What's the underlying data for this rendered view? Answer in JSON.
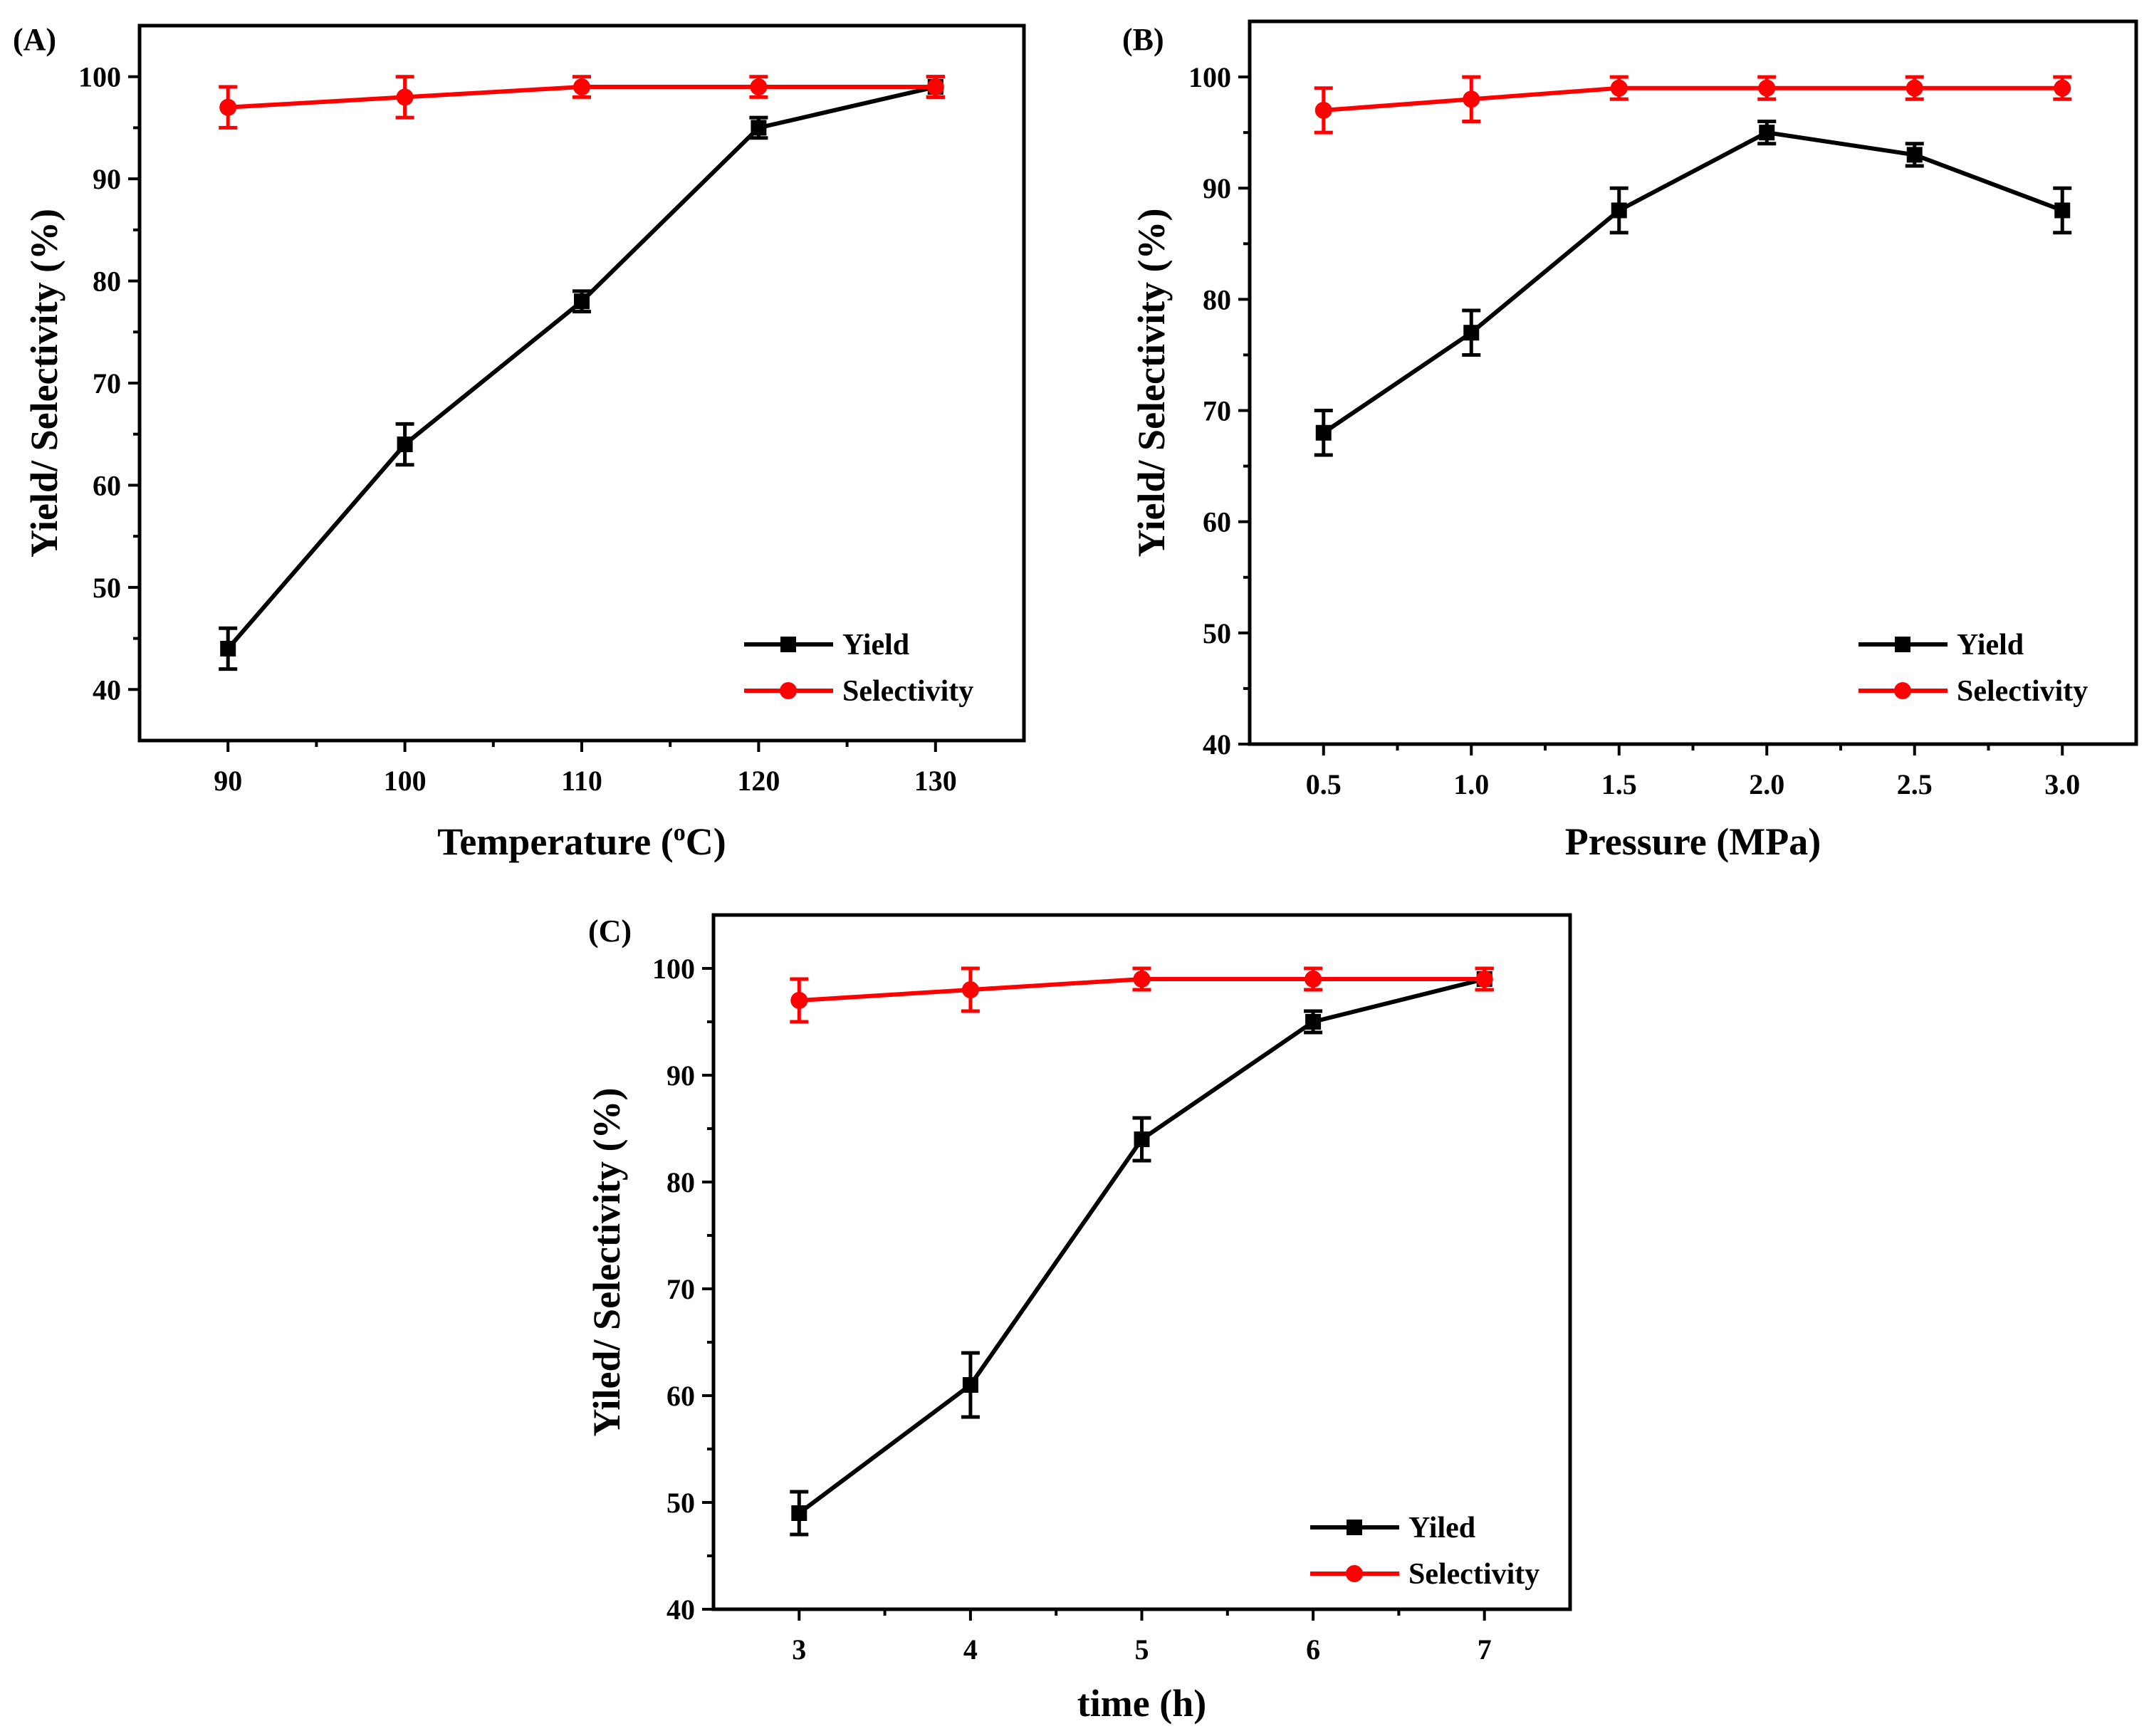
{
  "chart_data": [
    {
      "panel": "(A)",
      "type": "line",
      "xlabel": "Temperature (",
      "xlabel_sup": "o",
      "xlabel_suffix": "C)",
      "ylabel": "Yield/ Selectivity (%)",
      "x": [
        90,
        100,
        110,
        120,
        130
      ],
      "xticks": [
        "90",
        "100",
        "110",
        "120",
        "130"
      ],
      "xlim": [
        85,
        135
      ],
      "ylim": [
        35,
        105
      ],
      "yticks": [
        40,
        50,
        60,
        70,
        80,
        90,
        100
      ],
      "series": [
        {
          "name": "Yield",
          "color": "#000000",
          "marker": "square",
          "values": [
            44,
            64,
            78,
            95,
            99
          ],
          "errors": [
            2,
            2,
            1,
            1,
            1
          ]
        },
        {
          "name": "Selectivity",
          "color": "#ff0000",
          "marker": "circle",
          "values": [
            97,
            98,
            99,
            99,
            99
          ],
          "errors": [
            2,
            2,
            1,
            1,
            1
          ]
        }
      ],
      "legend": "bottom-right"
    },
    {
      "panel": "(B)",
      "type": "line",
      "xlabel": "Pressure (MPa)",
      "ylabel": "Yield/ Selectivity (%)",
      "x": [
        0.5,
        1.0,
        1.5,
        2.0,
        2.5,
        3.0
      ],
      "xticks": [
        "0.5",
        "1.0",
        "1.5",
        "2.0",
        "2.5",
        "3.0"
      ],
      "xlim": [
        0.25,
        3.25
      ],
      "ylim": [
        40,
        105
      ],
      "yticks": [
        40,
        50,
        60,
        70,
        80,
        90,
        100
      ],
      "series": [
        {
          "name": "Yield",
          "color": "#000000",
          "marker": "square",
          "values": [
            68,
            77,
            88,
            95,
            93,
            88
          ],
          "errors": [
            2,
            2,
            2,
            1,
            1,
            2
          ]
        },
        {
          "name": "Selectivity",
          "color": "#ff0000",
          "marker": "circle",
          "values": [
            97,
            98,
            99,
            99,
            99,
            99
          ],
          "errors": [
            2,
            2,
            1,
            1,
            1,
            1
          ]
        }
      ],
      "legend": "bottom-right"
    },
    {
      "panel": "(C)",
      "type": "line",
      "xlabel": "time (h)",
      "ylabel": "Yiled/ Selectivity (%)",
      "x": [
        3,
        4,
        5,
        6,
        7
      ],
      "xticks": [
        "3",
        "4",
        "5",
        "6",
        "7"
      ],
      "xlim": [
        2.5,
        7.5
      ],
      "ylim": [
        40,
        105
      ],
      "yticks": [
        40,
        50,
        60,
        70,
        80,
        90,
        100
      ],
      "series": [
        {
          "name": "Yiled",
          "color": "#000000",
          "marker": "square",
          "values": [
            49,
            61,
            84,
            95,
            99
          ],
          "errors": [
            2,
            3,
            2,
            1,
            1
          ]
        },
        {
          "name": "Selectivity",
          "color": "#ff0000",
          "marker": "circle",
          "values": [
            97,
            98,
            99,
            99,
            99
          ],
          "errors": [
            2,
            2,
            1,
            1,
            1
          ]
        }
      ],
      "legend": "bottom-right"
    }
  ]
}
